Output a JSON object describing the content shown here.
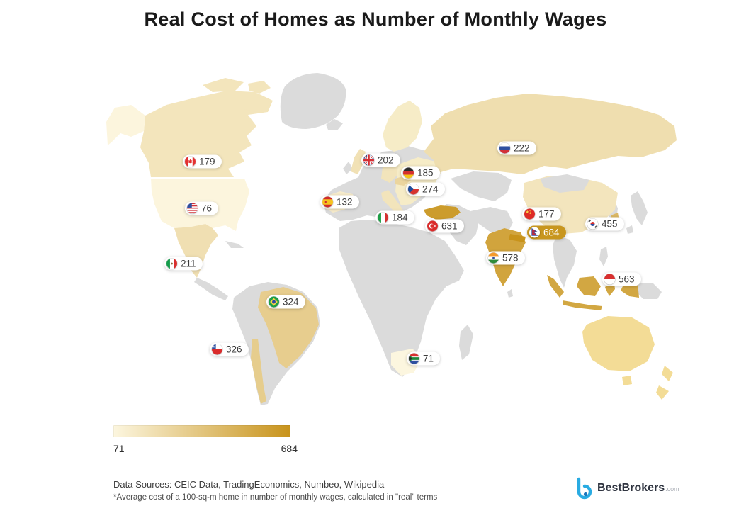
{
  "title": "Real Cost of Homes as Number of Monthly Wages",
  "chart_data": {
    "type": "choropleth_map",
    "metric": "Home cost expressed as number of monthly wages",
    "min": 71,
    "max": 684,
    "countries": [
      {
        "name": "Canada",
        "iso": "ca",
        "value": 179
      },
      {
        "name": "United States",
        "iso": "us",
        "value": 76
      },
      {
        "name": "Mexico",
        "iso": "mx",
        "value": 211
      },
      {
        "name": "Brazil",
        "iso": "br",
        "value": 324
      },
      {
        "name": "Chile",
        "iso": "cl",
        "value": 326
      },
      {
        "name": "United Kingdom",
        "iso": "gb",
        "value": 202
      },
      {
        "name": "Germany",
        "iso": "de",
        "value": 185
      },
      {
        "name": "Czech Republic",
        "iso": "cz",
        "value": 274
      },
      {
        "name": "Spain",
        "iso": "es",
        "value": 132
      },
      {
        "name": "Italy",
        "iso": "it",
        "value": 184
      },
      {
        "name": "Turkey",
        "iso": "tr",
        "value": 631
      },
      {
        "name": "Russia",
        "iso": "ru",
        "value": 222
      },
      {
        "name": "China",
        "iso": "cn",
        "value": 177
      },
      {
        "name": "South Korea",
        "iso": "kr",
        "value": 455
      },
      {
        "name": "Nepal",
        "iso": "np",
        "value": 684,
        "highlight": true
      },
      {
        "name": "India",
        "iso": "in",
        "value": 578
      },
      {
        "name": "Indonesia",
        "iso": "id",
        "value": 563
      },
      {
        "name": "South Africa",
        "iso": "za",
        "value": 71
      }
    ]
  },
  "legend": {
    "min_label": "71",
    "max_label": "684"
  },
  "footer": {
    "sources": "Data Sources: CEIC Data, TradingEconomics, Numbeo, Wikipedia",
    "note": "*Average cost of a 100-sq-m home in number of monthly wages, calculated in \"real\" terms"
  },
  "branding": {
    "name": "BestBrokers",
    "suffix": ".com"
  },
  "colors": {
    "scale_min": "#FCF6DF",
    "scale_max": "#C8931B",
    "land": "#DBDBDB",
    "unlabeled_region": "#F3DC96",
    "unlabeled_light": "#F6ECC7",
    "highlight_pill": "#C8961E"
  }
}
